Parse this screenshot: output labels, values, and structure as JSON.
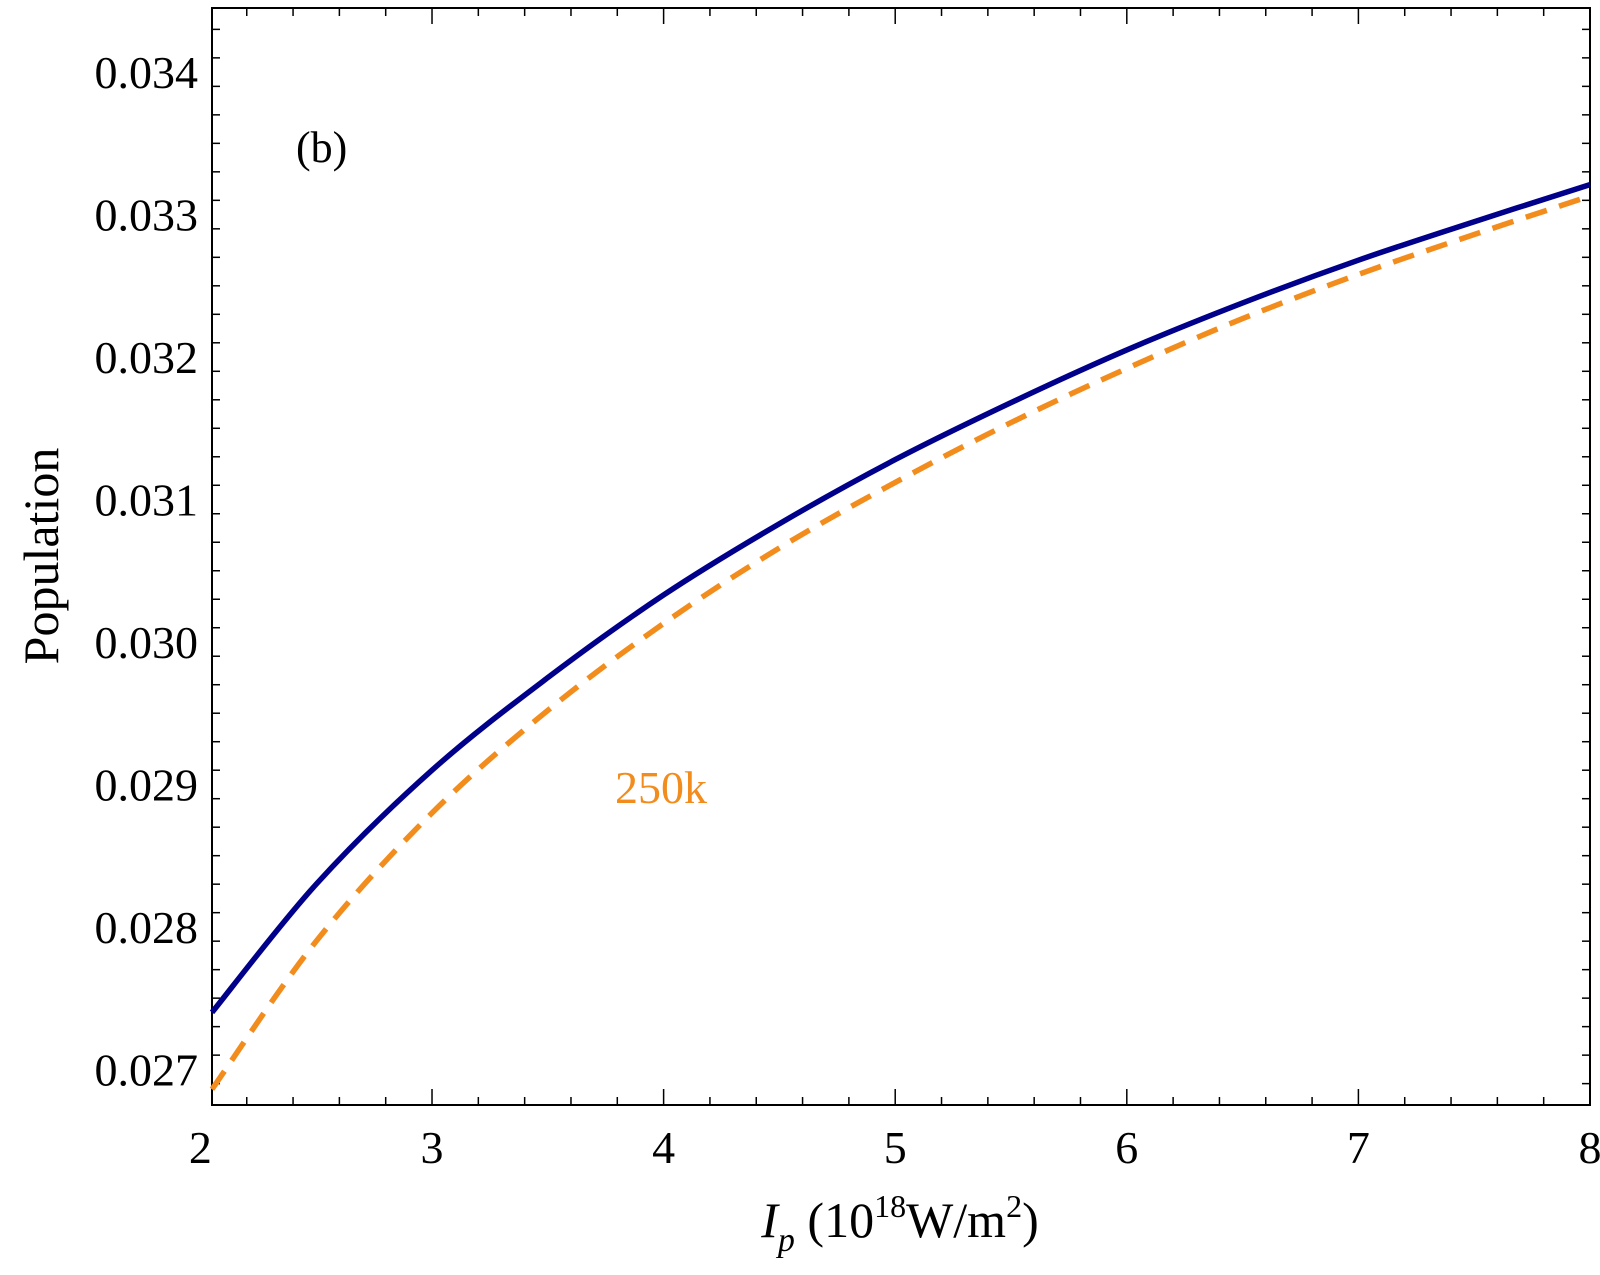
{
  "chart_data": {
    "type": "line",
    "panel_label": "(b)",
    "xlabel": {
      "symbol": "I",
      "subscript": "p",
      "units_open": " (10",
      "units_exp": "18",
      "units_mid": "W/m",
      "units_exp2": "2",
      "units_close": ")"
    },
    "ylabel": "Population",
    "xlim": [
      2.05,
      8.0
    ],
    "ylim": [
      0.02675,
      0.03445
    ],
    "x_ticks": [
      2,
      3,
      4,
      5,
      6,
      7,
      8
    ],
    "x_tick_labels": [
      "2",
      "3",
      "4",
      "5",
      "6",
      "7",
      "8"
    ],
    "y_ticks": [
      0.027,
      0.028,
      0.029,
      0.03,
      0.031,
      0.032,
      0.033,
      0.034
    ],
    "y_tick_labels": [
      "0.027",
      "0.028",
      "0.029",
      "0.030",
      "0.031",
      "0.032",
      "0.033",
      "0.034"
    ],
    "grid": false,
    "series": [
      {
        "color": "#00008b",
        "style": "solid",
        "x": [
          2.05,
          2.5,
          3.0,
          3.5,
          4.0,
          4.5,
          5.0,
          5.5,
          6.0,
          6.5,
          7.0,
          7.5,
          8.0
        ],
        "y": [
          0.0274,
          0.0283,
          0.0291,
          0.02975,
          0.03033,
          0.03083,
          0.03128,
          0.03168,
          0.03205,
          0.03238,
          0.03268,
          0.03295,
          0.03321
        ]
      },
      {
        "name": "250k",
        "color": "#f28c1c",
        "style": "dashed",
        "x": [
          2.05,
          2.5,
          3.0,
          3.5,
          4.0,
          4.5,
          5.0,
          5.5,
          6.0,
          6.5,
          7.0,
          7.5,
          8.0
        ],
        "y": [
          0.02686,
          0.0279,
          0.0288,
          0.02952,
          0.03013,
          0.03066,
          0.03112,
          0.03154,
          0.03192,
          0.03227,
          0.03258,
          0.03286,
          0.03313
        ]
      }
    ]
  }
}
